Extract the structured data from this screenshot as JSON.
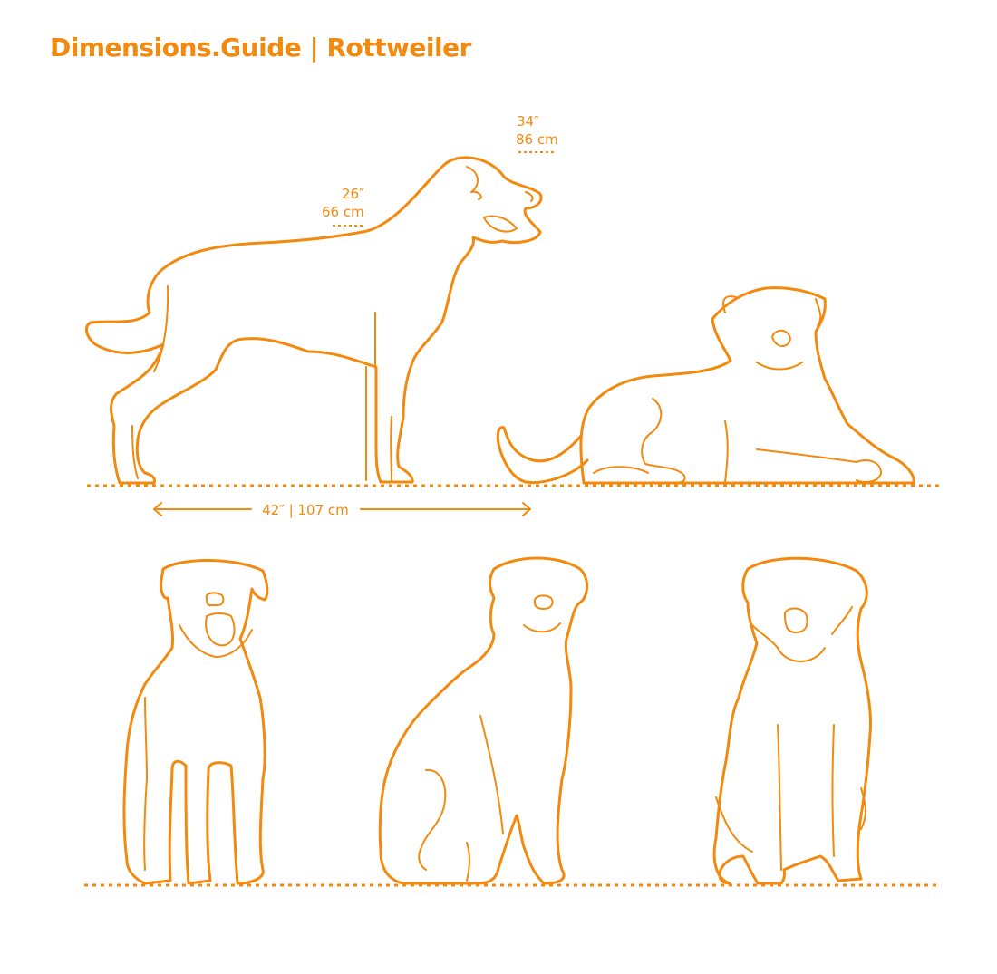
{
  "header": {
    "title": "Dimensions.Guide | Rottweiler"
  },
  "dimensions": {
    "height_head_in": "34″",
    "height_head_cm": "86 cm",
    "height_withers_in": "26″",
    "height_withers_cm": "66 cm",
    "length": "42″ | 107 cm"
  },
  "colors": {
    "accent": "#F28A0F",
    "background": "#FFFFFF"
  }
}
